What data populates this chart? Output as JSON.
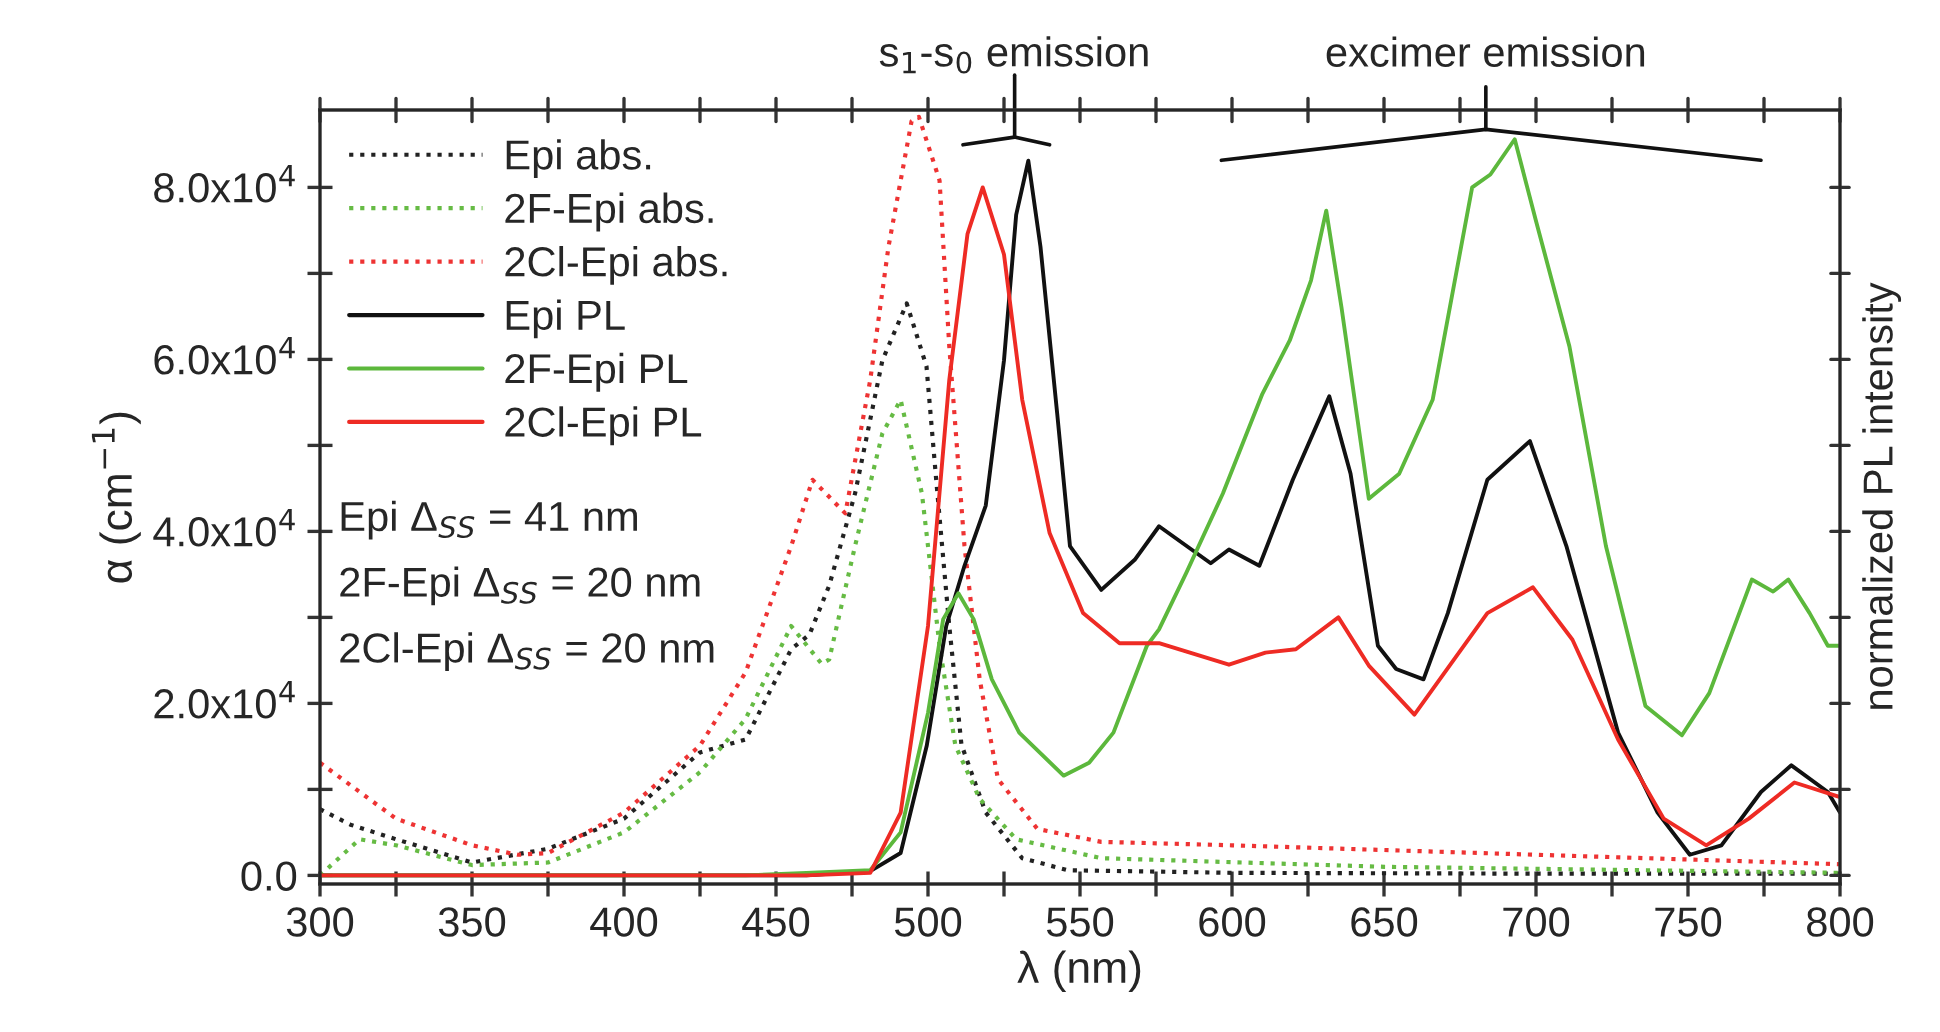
{
  "chart_data": {
    "type": "line",
    "xlabel": "λ (nm)",
    "ylabel": "α (cm$^{−1}$)",
    "y2label": "normalized PL intensity",
    "xlim": [
      300,
      800
    ],
    "xticks": [
      300,
      {
        "value": 325,
        "label": null
      },
      350,
      {
        "value": 375,
        "label": null
      },
      400,
      {
        "value": 425,
        "label": null
      },
      450,
      {
        "value": 475,
        "label": null
      },
      500,
      {
        "value": 525,
        "label": null
      },
      550,
      {
        "value": 575,
        "label": null
      },
      600,
      {
        "value": 625,
        "label": null
      },
      650,
      {
        "value": 675,
        "label": null
      },
      700,
      {
        "value": 725,
        "label": null
      },
      750,
      {
        "value": 775,
        "label": null
      },
      800
    ],
    "ylim": [
      -1000,
      89000
    ],
    "yticks": [
      {
        "value": 0,
        "label": "0.0"
      },
      {
        "value": 10000,
        "label": null
      },
      {
        "value": 20000,
        "label": "2.0x10$^{4}$"
      },
      {
        "value": 30000,
        "label": null
      },
      {
        "value": 40000,
        "label": "4.0x10$^{4}$"
      },
      {
        "value": 50000,
        "label": null
      },
      {
        "value": 60000,
        "label": "6.0x10$^{4}$"
      },
      {
        "value": 70000,
        "label": null
      },
      {
        "value": 80000,
        "label": "8.0x10$^{4}$"
      }
    ],
    "grid": false,
    "legend": "top left",
    "marker": "none",
    "series": [
      {
        "name": "Epi abs.",
        "color": "#222222",
        "line_style": "dotted",
        "x": [
          300,
          310,
          325,
          350,
          375,
          400,
          425,
          440,
          455,
          461,
          467.5,
          476,
          485,
          493,
          499.5,
          502.7,
          507,
          511,
          519,
          531,
          546,
          600,
          700,
          800
        ],
        "values": [
          7700,
          5900,
          4200,
          1500,
          3100,
          6600,
          14300,
          15800,
          26300,
          28000,
          33700,
          44400,
          59900,
          66500,
          59200,
          46000,
          29000,
          15200,
          7300,
          2000,
          600,
          300,
          200,
          200
        ]
      },
      {
        "name": "2F-Epi abs.",
        "color": "#66bb44",
        "line_style": "dotted",
        "x": [
          300,
          313,
          325,
          350,
          375,
          400,
          425,
          440,
          455,
          465,
          467.5,
          476,
          485,
          491,
          498,
          503.8,
          509,
          517,
          529,
          557,
          650,
          800
        ],
        "values": [
          0,
          4200,
          3500,
          1200,
          1500,
          5000,
          12000,
          18200,
          29000,
          24600,
          25100,
          38300,
          51400,
          55300,
          44400,
          26700,
          15100,
          8900,
          4200,
          2000,
          1000,
          300
        ]
      },
      {
        "name": "2Cl-Epi abs.",
        "color": "#ee3333",
        "line_style": "dotted",
        "x": [
          300,
          325,
          350,
          365,
          375,
          400,
          425,
          440,
          455,
          462,
          472.8,
          481,
          487,
          494.6,
          497,
          503.8,
          507,
          512,
          517,
          523,
          536,
          557,
          600,
          800
        ],
        "values": [
          13100,
          6600,
          3500,
          2400,
          2600,
          7300,
          15100,
          23600,
          38300,
          46000,
          42100,
          57600,
          73100,
          87700,
          88200,
          80800,
          61500,
          38300,
          22800,
          11200,
          5400,
          3900,
          3500,
          1300
        ]
      },
      {
        "name": "Epi PL",
        "color": "#111111",
        "line_style": "solid",
        "x": [
          300,
          440,
          460,
          481,
          491,
          499.6,
          506,
          512,
          519,
          525,
          529,
          533,
          537,
          542.5,
          546.7,
          557,
          568,
          576,
          593,
          599,
          609,
          620,
          632,
          639,
          648,
          654,
          663,
          671,
          684,
          698,
          710,
          727,
          740,
          750.6,
          761,
          774,
          784,
          796,
          800
        ],
        "values": [
          0,
          0,
          0,
          500,
          2600,
          15100,
          29000,
          36000,
          43000,
          59900,
          76800,
          83100,
          73100,
          53700,
          38300,
          33200,
          36700,
          40600,
          36300,
          37900,
          36000,
          46000,
          55700,
          46700,
          26700,
          24000,
          22800,
          30500,
          46000,
          50500,
          38300,
          16600,
          7300,
          2400,
          3500,
          9700,
          12800,
          9700,
          7300
        ]
      },
      {
        "name": "2F-Epi PL",
        "color": "#5cb83c",
        "line_style": "solid",
        "x": [
          300,
          440,
          460,
          481,
          491,
          500,
          505,
          510,
          515,
          521,
          530,
          544.6,
          553,
          561,
          572,
          576,
          585,
          597,
          610,
          619,
          626,
          631,
          636,
          645,
          655,
          666,
          679,
          685,
          693,
          700,
          711,
          723,
          736,
          748,
          757,
          771,
          778,
          783,
          790,
          796,
          800
        ],
        "values": [
          0,
          0,
          300,
          600,
          5000,
          18900,
          29800,
          32800,
          29800,
          22800,
          16600,
          11600,
          13100,
          16600,
          26700,
          28600,
          35200,
          44400,
          56000,
          62200,
          69200,
          77300,
          66100,
          43800,
          46700,
          55300,
          80000,
          81500,
          85600,
          76100,
          61500,
          38300,
          19700,
          16300,
          21200,
          34400,
          33000,
          34400,
          30500,
          26700,
          26700
        ]
      },
      {
        "name": "2Cl-Epi PL",
        "color": "#ee2b24",
        "line_style": "solid",
        "x": [
          300,
          440,
          460,
          481,
          491,
          500,
          507,
          513,
          518,
          525,
          531,
          540,
          551,
          563,
          576,
          599,
          611,
          621,
          635,
          645,
          660,
          673,
          684,
          699,
          712,
          727,
          742,
          756,
          770,
          785,
          800
        ],
        "values": [
          0,
          0,
          0,
          300,
          7300,
          29000,
          57600,
          74600,
          80000,
          72200,
          55300,
          39800,
          30500,
          27000,
          27000,
          24500,
          25900,
          26300,
          30000,
          24400,
          18700,
          25100,
          30500,
          33500,
          27400,
          15800,
          6600,
          3500,
          6600,
          10800,
          9100
        ]
      }
    ],
    "annotations": [
      "Epi Δ$_{SS}$ = 41 nm",
      "2F-Epi Δ$_{SS}$ = 20 nm",
      "2Cl-Epi Δ$_{SS}$ = 20 nm",
      "s$_{1}$-s$_{0}$ emission",
      "excimer emission"
    ]
  }
}
